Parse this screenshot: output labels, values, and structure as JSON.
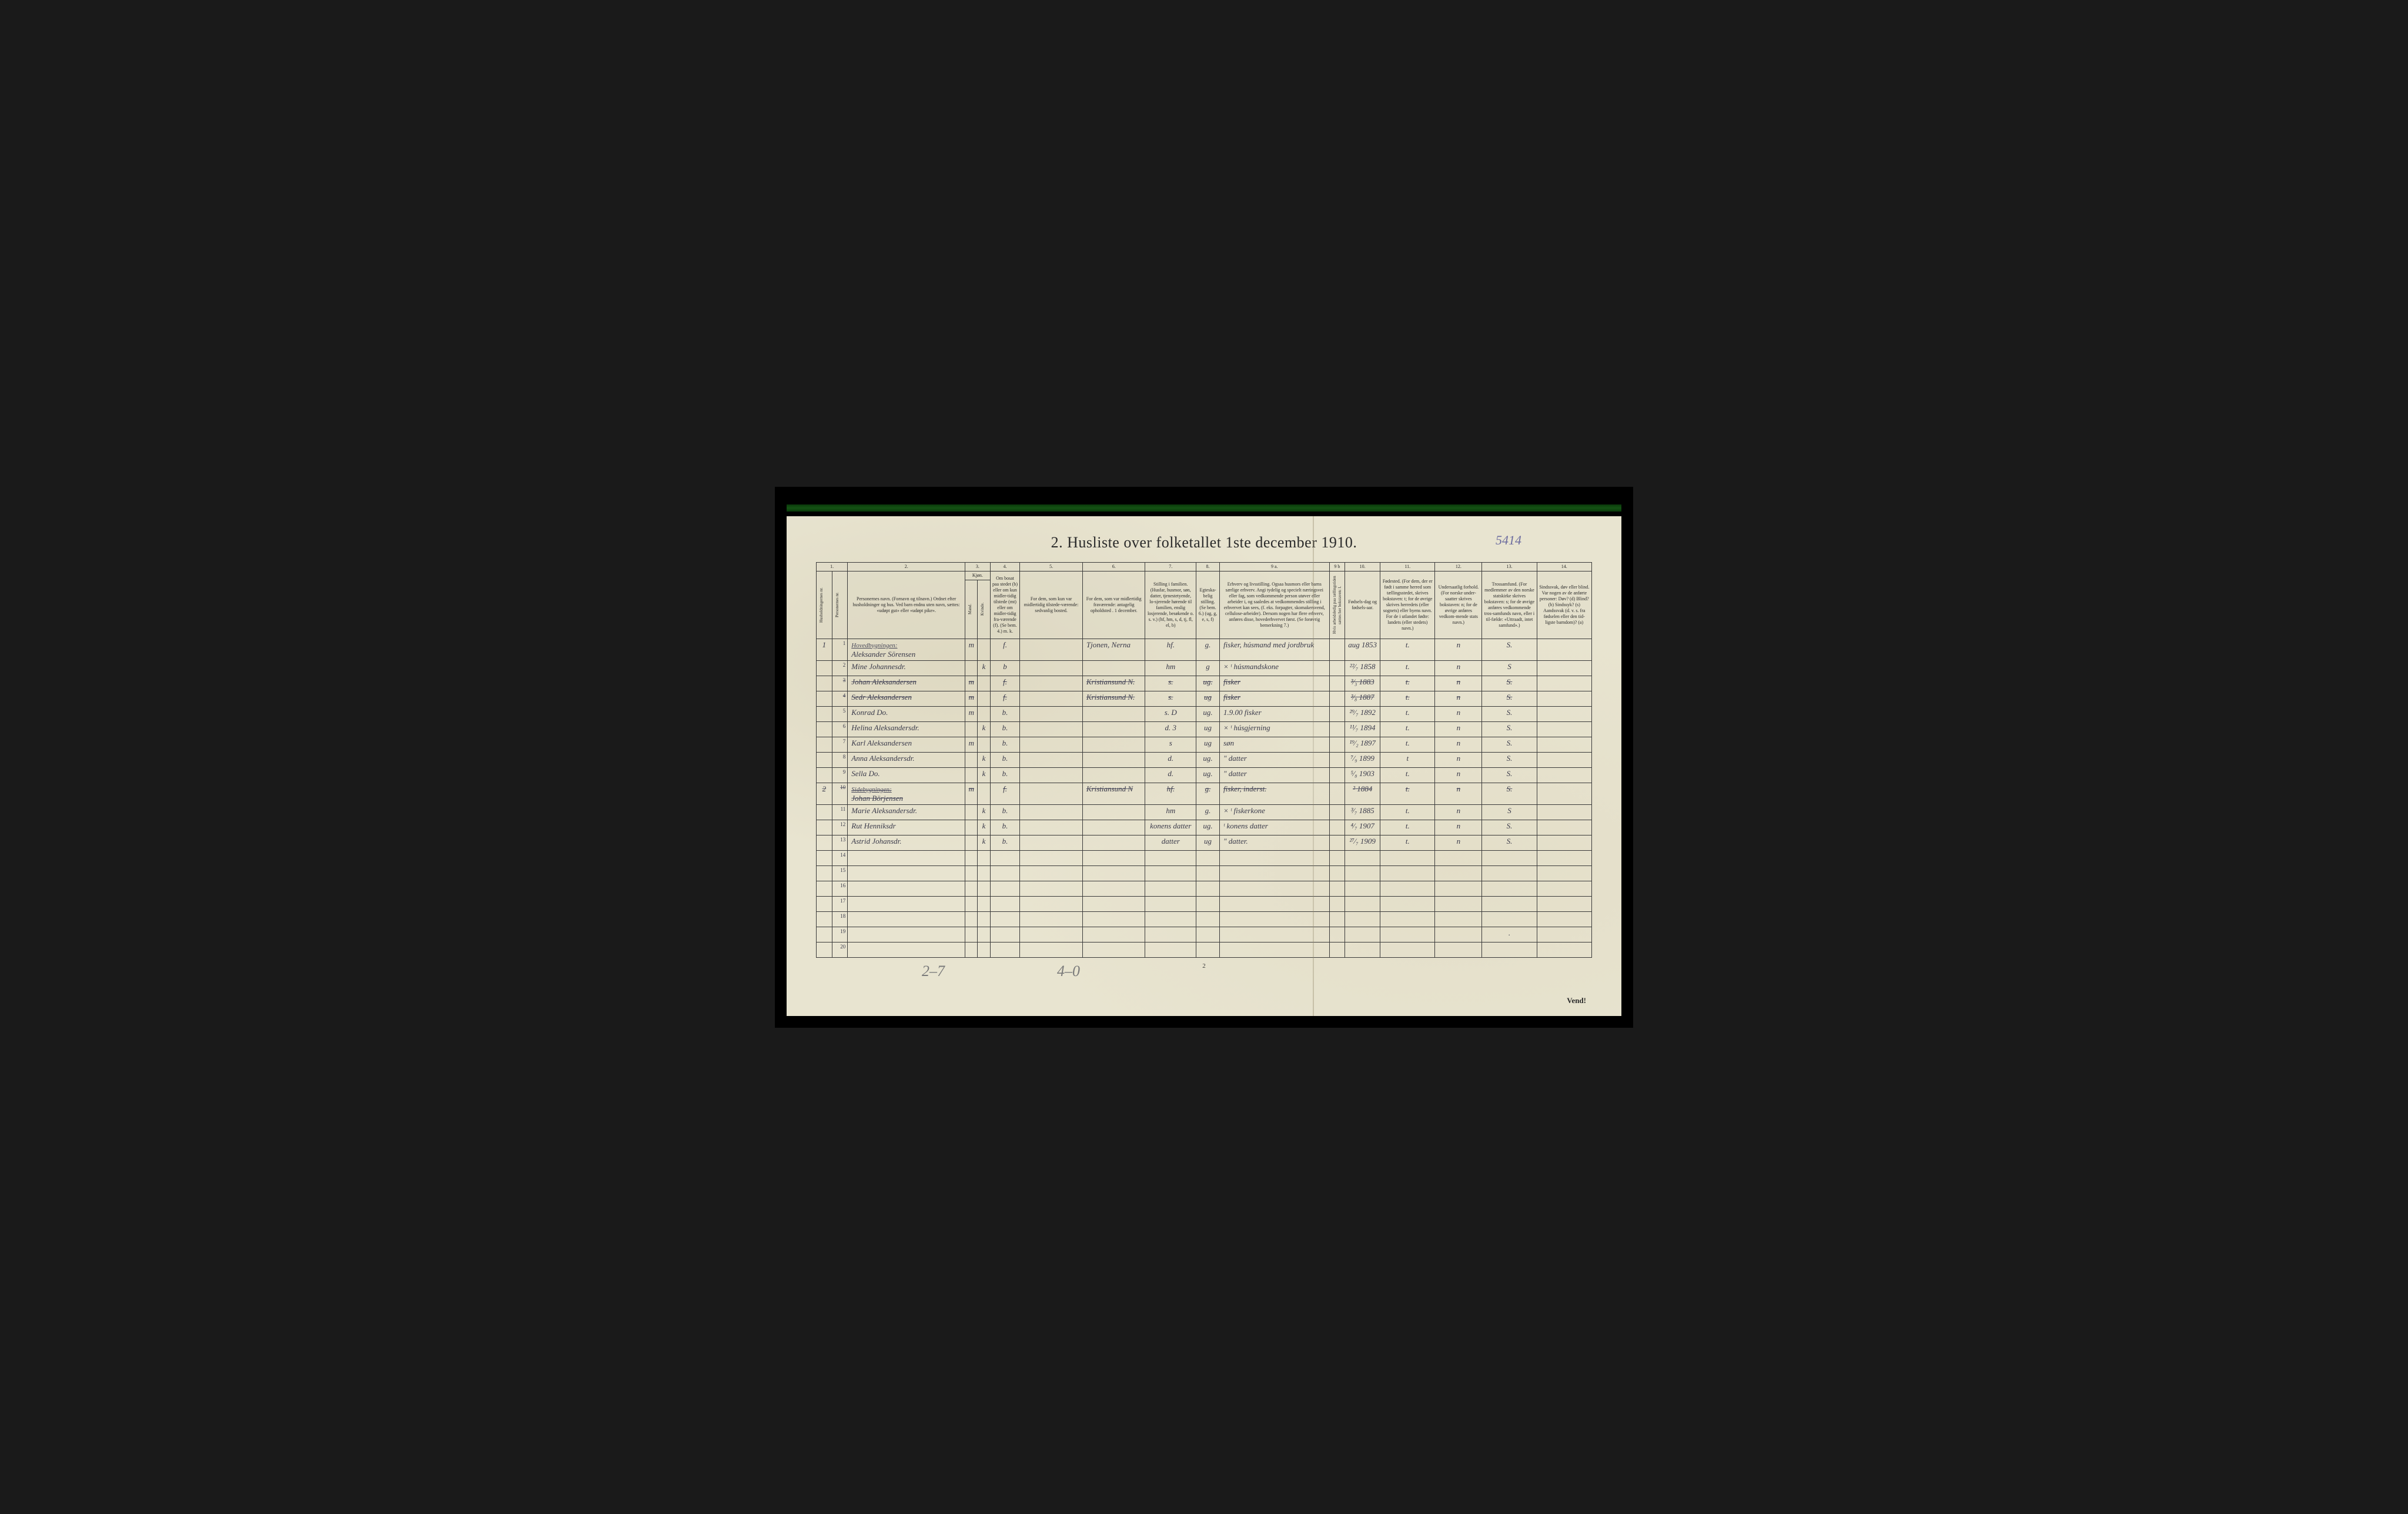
{
  "page_meta": {
    "handwritten_page_no": "5414",
    "title": "2.  Husliste over folketallet 1ste december 1910.",
    "footer_page_no": "2",
    "vend_label": "Vend!",
    "pencil_note_1": "2–7",
    "pencil_note_2": "4–0"
  },
  "column_numbers": [
    "1.",
    "",
    "2.",
    "3.",
    "",
    "4.",
    "5.",
    "6.",
    "7.",
    "8.",
    "9 a.",
    "9 b",
    "10.",
    "11.",
    "12.",
    "13.",
    "14."
  ],
  "headers": {
    "hh": "Husholdningernes nr.",
    "pn": "Personernes nr.",
    "name": "Personernes navn.\n(Fornavn og tilnavn.)\nOrdnet efter husholdninger og hus.\nVed barn endnu uten navn, sættes: «udøpt gut» eller «udøpt pike».",
    "sex": "Kjøn.",
    "sex_m": "Mand.",
    "sex_k": "Kvinde.",
    "pres": "Om bosat paa stedet (b) eller om kun midler-tidig tilstede (mt) eller om midler-tidig fra-værende (f).\n(Se bem. 4.)\nm. k.",
    "temp": "For dem, som kun var midlertidig tilstede-værende:\nsedvanlig bosted.",
    "abs": "For dem, som var midlertidig fraværende:\nantagelig opholdsted . 1 december.",
    "pos": "Stilling i familien.\n(Husfar, husmor, søn, datter, tjenestetyende, lo-sjerende hørende til familien, enslig losjerende, besøkende o. s. v.)\n(hf, hm, s, d, tj, fl, el, b)",
    "mar": "Egteska-belig stilling.\n(Se bem. 6.)\n(ug, g, e, s, f)",
    "occ": "Erhverv og livsstilling.\nOgsaa husmors eller barns særlige erhverv.\nAngi tydelig og specielt næringsvei eller fag, som vedkommende person utøver eller arbeider i, og saaledes at vedkommendes stilling i erhvervet kan sees, (f. eks. forpagter, skomakersvend, cellulose-arbeider). Dersom nogen har flere erhverv, anføres disse, hovederhvervet først.\n(Se forøvrig bemerkning 7.)",
    "emp": "Hvis arbeidsledig paa tællingstiden sættes her bokstaven: l.",
    "bdate": "Fødsels-dag og fødsels-aar.",
    "bplace": "Fødested.\n(For dem, der er født i samme herred som tællingsstedet, skrives bokstaven: t; for de øvrige skrives herredets (eller sognets) eller byens navn.\nFor de i utlandet fødte: landets (eller stedets) navn.)",
    "cit": "Undersaatlig forhold.\n(For norske under-saatter skrives bokstaven: n; for de øvrige anføres vedkom-mende stats navn.)",
    "rel": "Trossamfund.\n(For medlemmer av den norske statskirke skrives bokstaven: s; for de øvrige anføres vedkommende tros-samfunds navn, eller i til-fælde: «Uttraadt, intet samfund».)",
    "inf": "Sindssvak, døv eller blind.\nVar nogen av de anførte personer:\nDøv?        (d)\nBlind?       (b)\nSindssyk?  (s)\nAandssvak (d. v. s. fra fødselen eller den tid-ligste barndom)?  (a)"
  },
  "sections": {
    "hoved": "Hovedbygningen:",
    "side": "Sidebygningen:"
  },
  "rows": [
    {
      "hh": "1",
      "n": "1",
      "section": "hoved",
      "name": "Aleksander Sörensen",
      "m": "m",
      "k": "",
      "pres": "f.",
      "temp": "",
      "abs": "Tjonen, Nerna",
      "pos": "hf.",
      "mar": "g.",
      "occ": "fisker, húsmand med jordbruk",
      "emp": "",
      "bdate": "aug 1853",
      "bplace": "t.",
      "cit": "n",
      "rel": "S.",
      "inf": ""
    },
    {
      "hh": "",
      "n": "2",
      "name": "Mine Johannesdr.",
      "m": "",
      "k": "k",
      "pres": "b",
      "temp": "",
      "abs": "",
      "pos": "hm",
      "mar": "g",
      "occ": "× ᵗ húsmandskone",
      "emp": "",
      "bdate": "²²⁄₇ 1858",
      "bplace": "t.",
      "cit": "n",
      "rel": "S",
      "inf": ""
    },
    {
      "hh": "",
      "n": "3",
      "name": "Johan Aleksandersen",
      "m": "m",
      "k": "",
      "pres": "f.",
      "temp": "",
      "abs": "Kristiansund N.",
      "pos": "s.",
      "mar": "ug.",
      "occ": "fisker",
      "emp": "",
      "bdate": "³⁄₃ 1883",
      "bplace": "t.",
      "cit": "n",
      "rel": "S.",
      "inf": "",
      "strike": true
    },
    {
      "hh": "",
      "n": "4",
      "name": "Sedr Aleksandersen",
      "m": "m",
      "k": "",
      "pres": "f.",
      "temp": "",
      "abs": "Kristiansund N.",
      "pos": "s.",
      "mar": "ug",
      "occ": "fisker",
      "emp": "",
      "bdate": "³⁄₈ 1887",
      "bplace": "t.",
      "cit": "n",
      "rel": "S.",
      "inf": "",
      "strike": true
    },
    {
      "hh": "",
      "n": "5",
      "name": "Konrad   Do.",
      "m": "m",
      "k": "",
      "pres": "b.",
      "temp": "",
      "abs": "",
      "pos": "s.   D",
      "mar": "ug.",
      "occ": "1.9.00 fisker",
      "emp": "",
      "bdate": "²⁹⁄₇ 1892",
      "bplace": "t.",
      "cit": "n",
      "rel": "S.",
      "inf": ""
    },
    {
      "hh": "",
      "n": "6",
      "name": "Helina Aleksandersdr.",
      "m": "",
      "k": "k",
      "pres": "b.",
      "temp": "",
      "abs": "",
      "pos": "d.   3",
      "mar": "ug",
      "occ": "× ᵗ húsgjerning",
      "emp": "",
      "bdate": "¹¹⁄₇ 1894",
      "bplace": "t.",
      "cit": "n",
      "rel": "S.",
      "inf": ""
    },
    {
      "hh": "",
      "n": "7",
      "name": "Karl Aleksandersen",
      "m": "m",
      "k": "",
      "pres": "b.",
      "temp": "",
      "abs": "",
      "pos": "s",
      "mar": "ug",
      "occ": "søn",
      "emp": "",
      "bdate": "¹⁹⁄₂ 1897",
      "bplace": "t.",
      "cit": "n",
      "rel": "S.",
      "inf": ""
    },
    {
      "hh": "",
      "n": "8",
      "name": "Anna Aleksandersdr.",
      "m": "",
      "k": "k",
      "pres": "b.",
      "temp": "",
      "abs": "",
      "pos": "d.",
      "mar": "ug.",
      "occ": "\"    datter",
      "emp": "",
      "bdate": "⁷⁄₉ 1899",
      "bplace": "t",
      "cit": "n",
      "rel": "S.",
      "inf": ""
    },
    {
      "hh": "",
      "n": "9",
      "name": "Sella    Do.",
      "m": "",
      "k": "k",
      "pres": "b.",
      "temp": "",
      "abs": "",
      "pos": "d.",
      "mar": "ug.",
      "occ": "\"   datter",
      "emp": "",
      "bdate": "⁵⁄₈ 1903",
      "bplace": "t.",
      "cit": "n",
      "rel": "S.",
      "inf": ""
    },
    {
      "hh": "2",
      "n": "10",
      "section": "side",
      "name": "Johan Börjensen",
      "m": "m",
      "k": "",
      "pres": "f.",
      "temp": "",
      "abs": "Kristiansund N",
      "pos": "hf.",
      "mar": "g.",
      "occ": "fisker, inderst.",
      "emp": "",
      "bdate": "² 1884",
      "bplace": "t.",
      "cit": "n",
      "rel": "S.",
      "inf": "",
      "strike": true
    },
    {
      "hh": "",
      "n": "11",
      "name": "Marie Aleksandersdr.",
      "m": "",
      "k": "k",
      "pres": "b.",
      "temp": "",
      "abs": "",
      "pos": "hm",
      "mar": "g.",
      "occ": "× ᵗ fiskerkone",
      "emp": "",
      "bdate": "³⁄₇ 1885",
      "bplace": "t.",
      "cit": "n",
      "rel": "S",
      "inf": ""
    },
    {
      "hh": "",
      "n": "12",
      "name": "Rut Henniksdr",
      "m": "",
      "k": "k",
      "pres": "b.",
      "temp": "",
      "abs": "",
      "pos": "konens datter",
      "mar": "ug.",
      "occ": "ᵗ konens datter",
      "emp": "",
      "bdate": "⁴⁄₇ 1907",
      "bplace": "t.",
      "cit": "n",
      "rel": "S.",
      "inf": ""
    },
    {
      "hh": "",
      "n": "13",
      "name": "Astrid Johansdr.",
      "m": "",
      "k": "k",
      "pres": "b.",
      "temp": "",
      "abs": "",
      "pos": "datter",
      "mar": "ug",
      "occ": "\"   datter.",
      "emp": "",
      "bdate": "²⁷⁄₇ 1909",
      "bplace": "t.",
      "cit": "n",
      "rel": "S.",
      "inf": ""
    },
    {
      "hh": "",
      "n": "14",
      "name": "",
      "m": "",
      "k": "",
      "pres": "",
      "temp": "",
      "abs": "",
      "pos": "",
      "mar": "",
      "occ": "",
      "emp": "",
      "bdate": "",
      "bplace": "",
      "cit": "",
      "rel": "",
      "inf": ""
    },
    {
      "hh": "",
      "n": "15",
      "name": "",
      "m": "",
      "k": "",
      "pres": "",
      "temp": "",
      "abs": "",
      "pos": "",
      "mar": "",
      "occ": "",
      "emp": "",
      "bdate": "",
      "bplace": "",
      "cit": "",
      "rel": "",
      "inf": ""
    },
    {
      "hh": "",
      "n": "16",
      "name": "",
      "m": "",
      "k": "",
      "pres": "",
      "temp": "",
      "abs": "",
      "pos": "",
      "mar": "",
      "occ": "",
      "emp": "",
      "bdate": "",
      "bplace": "",
      "cit": "",
      "rel": "",
      "inf": ""
    },
    {
      "hh": "",
      "n": "17",
      "name": "",
      "m": "",
      "k": "",
      "pres": "",
      "temp": "",
      "abs": "",
      "pos": "",
      "mar": "",
      "occ": "",
      "emp": "",
      "bdate": "",
      "bplace": "",
      "cit": "",
      "rel": "",
      "inf": ""
    },
    {
      "hh": "",
      "n": "18",
      "name": "",
      "m": "",
      "k": "",
      "pres": "",
      "temp": "",
      "abs": "",
      "pos": "",
      "mar": "",
      "occ": "",
      "emp": "",
      "bdate": "",
      "bplace": "",
      "cit": "",
      "rel": "",
      "inf": ""
    },
    {
      "hh": "",
      "n": "19",
      "name": "",
      "m": "",
      "k": "",
      "pres": "",
      "temp": "",
      "abs": "",
      "pos": "",
      "mar": "",
      "occ": "",
      "emp": "",
      "bdate": "",
      "bplace": "",
      "cit": "",
      "rel": ".",
      "inf": ""
    },
    {
      "hh": "",
      "n": "20",
      "name": "",
      "m": "",
      "k": "",
      "pres": "",
      "temp": "",
      "abs": "",
      "pos": "",
      "mar": "",
      "occ": "",
      "emp": "",
      "bdate": "",
      "bplace": "",
      "cit": "",
      "rel": "",
      "inf": ""
    }
  ]
}
